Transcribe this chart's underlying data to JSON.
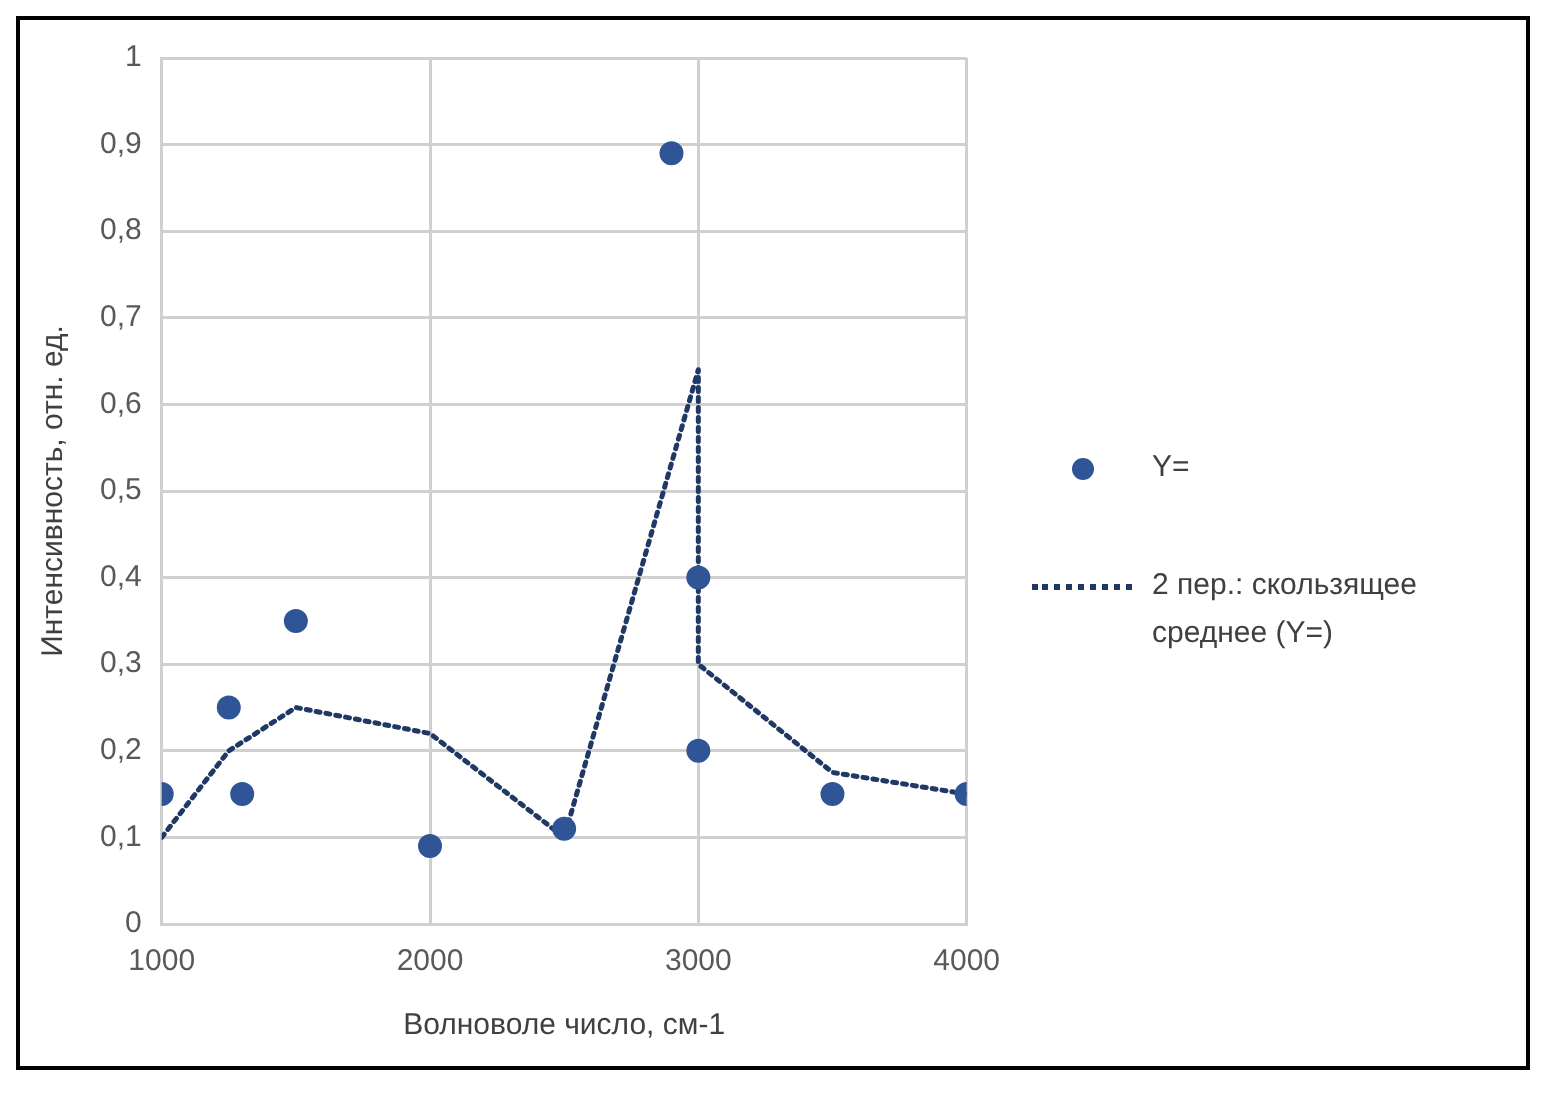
{
  "chart_data": {
    "type": "scatter",
    "xlabel": "Волноволе число, см-1",
    "ylabel": "Интенсивность, отн. ед.",
    "xlim": [
      1000,
      4000
    ],
    "xticks": [
      1000,
      2000,
      3000,
      4000
    ],
    "ylim": [
      0,
      1
    ],
    "yticks": [
      {
        "value": 0,
        "label": "0"
      },
      {
        "value": 0.1,
        "label": "0,1"
      },
      {
        "value": 0.2,
        "label": "0,2"
      },
      {
        "value": 0.3,
        "label": "0,3"
      },
      {
        "value": 0.4,
        "label": "0,4"
      },
      {
        "value": 0.5,
        "label": "0,5"
      },
      {
        "value": 0.6,
        "label": "0,6"
      },
      {
        "value": 0.7,
        "label": "0,7"
      },
      {
        "value": 0.8,
        "label": "0,8"
      },
      {
        "value": 0.9,
        "label": "0,9"
      },
      {
        "value": 1,
        "label": "1"
      }
    ],
    "grid": true,
    "legend": "right",
    "series": [
      {
        "name": "Y=",
        "type": "scatter",
        "marker": "circle",
        "color": "#2f5597",
        "x": [
          1000,
          1250,
          1300,
          1500,
          2000,
          2500,
          2900,
          3000,
          3000,
          3500,
          4000
        ],
        "values": [
          0.15,
          0.25,
          0.15,
          0.35,
          0.09,
          0.11,
          0.89,
          0.4,
          0.2,
          0.15,
          0.15
        ]
      },
      {
        "name": "2 пер.: скользящее среднее (Y=)",
        "type": "line",
        "marker": "none",
        "line_style": "dotted",
        "color": "#203864",
        "x": [
          1000,
          1250,
          1500,
          2000,
          2500,
          3000,
          3000,
          3500,
          4000
        ],
        "values": [
          0.1,
          0.2,
          0.25,
          0.22,
          0.1,
          0.64,
          0.3,
          0.175,
          0.15
        ]
      }
    ]
  }
}
